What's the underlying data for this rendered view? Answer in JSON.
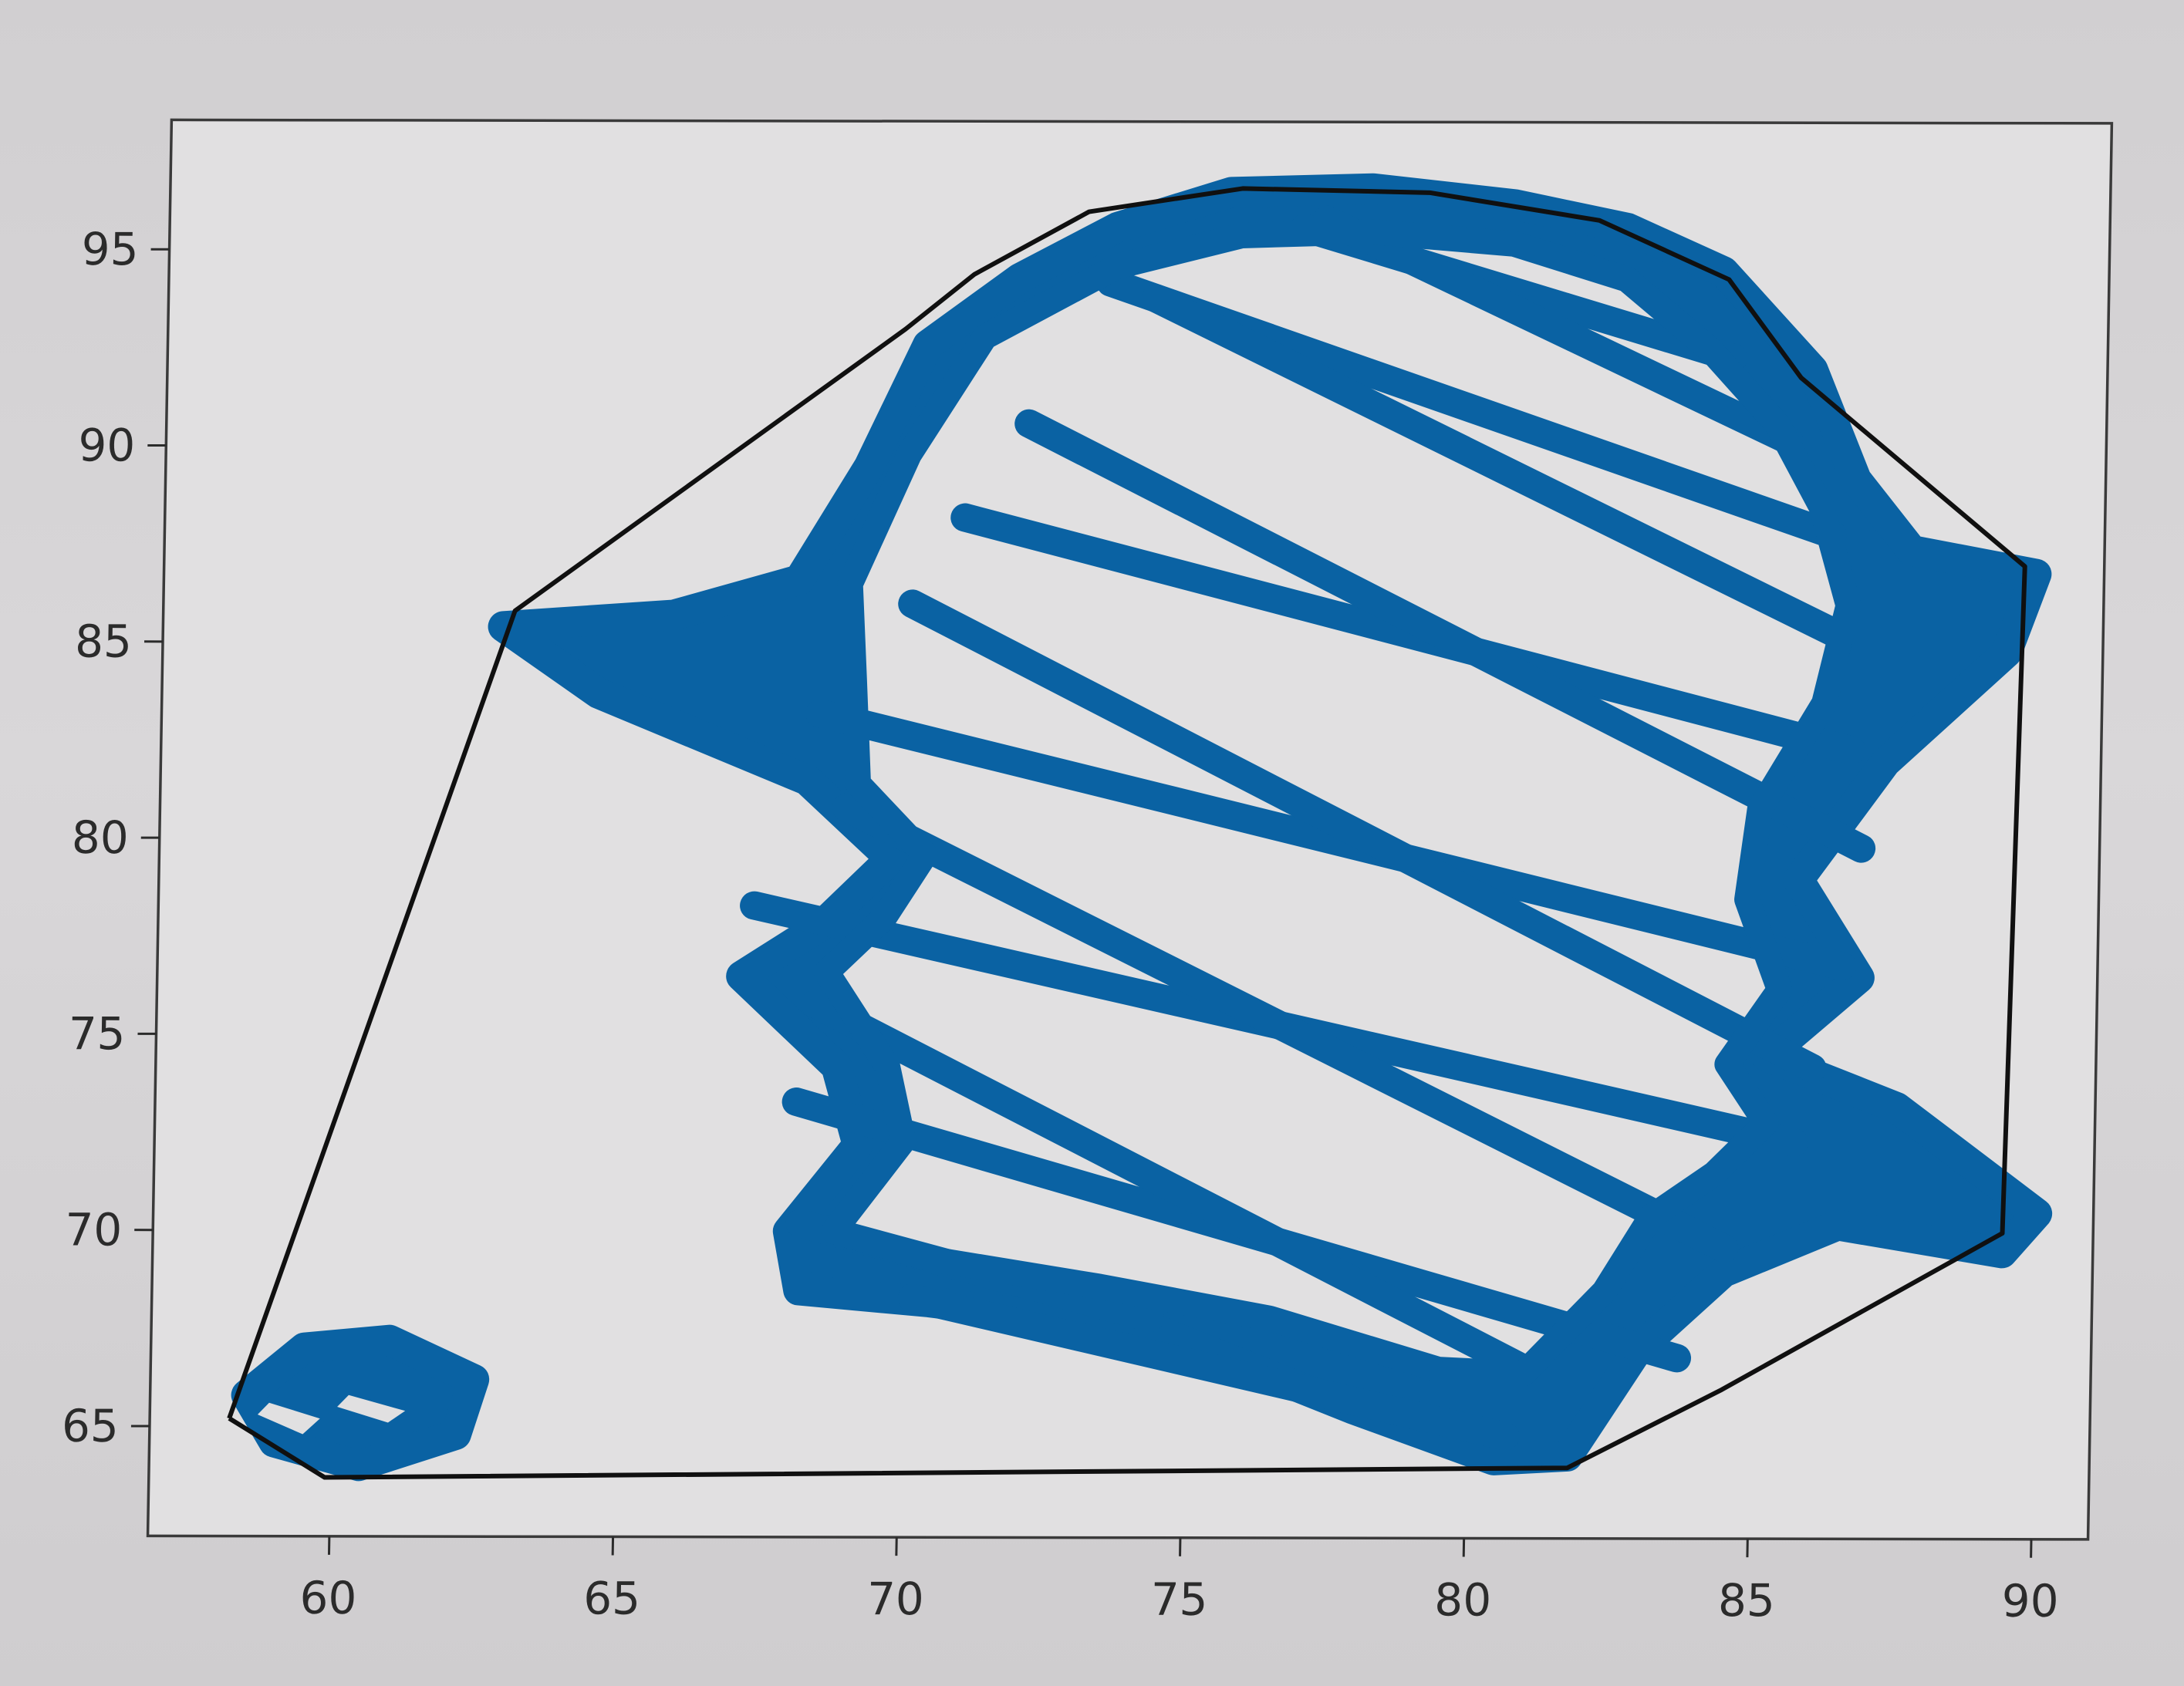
{
  "chart_data": {
    "type": "scatter",
    "title": "",
    "xlabel": "",
    "ylabel": "",
    "xlim": [
      56.8,
      91
    ],
    "ylim": [
      62.2,
      98.3
    ],
    "xticks": [
      60,
      65,
      70,
      75,
      80,
      85,
      90
    ],
    "yticks": [
      65,
      70,
      75,
      80,
      85,
      90,
      95
    ],
    "xtick_labels": [
      "60",
      "65",
      "70",
      "75",
      "80",
      "85",
      "90"
    ],
    "ytick_labels": [
      "65",
      "70",
      "75",
      "80",
      "85",
      "90",
      "95"
    ],
    "grid": false,
    "legend": "none",
    "series": [
      {
        "kind": "points",
        "color": "#0a62a3",
        "paths": [
          [
            [
              58.5,
              65.8
            ],
            [
              59.5,
              67.0
            ],
            [
              61.0,
              67.2
            ],
            [
              62.5,
              66.2
            ],
            [
              62.2,
              64.8
            ],
            [
              60.5,
              64.0
            ],
            [
              59.0,
              64.6
            ],
            [
              58.5,
              65.8
            ]
          ],
          [
            [
              62.8,
              85.4
            ],
            [
              65.8,
              85.7
            ],
            [
              68.0,
              86.6
            ],
            [
              69.2,
              89.5
            ],
            [
              70.2,
              92.6
            ],
            [
              71.8,
              94.3
            ],
            [
              73.5,
              95.6
            ],
            [
              75.5,
              96.5
            ],
            [
              78.0,
              96.6
            ],
            [
              80.5,
              96.2
            ],
            [
              82.5,
              95.6
            ],
            [
              84.2,
              94.5
            ],
            [
              85.8,
              92.0
            ],
            [
              86.6,
              89.2
            ],
            [
              87.6,
              87.4
            ],
            [
              89.8,
              86.8
            ],
            [
              89.3,
              84.8
            ],
            [
              87.2,
              82.0
            ],
            [
              85.7,
              79.0
            ],
            [
              86.8,
              76.5
            ],
            [
              85.2,
              74.5
            ],
            [
              87.5,
              73.2
            ],
            [
              90.0,
              70.5
            ],
            [
              89.4,
              69.5
            ],
            [
              86.5,
              70.2
            ],
            [
              84.5,
              69.0
            ],
            [
              83.0,
              67.0
            ],
            [
              81.8,
              64.3
            ],
            [
              80.5,
              64.2
            ],
            [
              78.0,
              65.5
            ],
            [
              74.5,
              67.5
            ],
            [
              70.5,
              68.2
            ],
            [
              68.2,
              68.5
            ],
            [
              68.0,
              70.0
            ],
            [
              69.2,
              72.2
            ],
            [
              68.8,
              74.2
            ],
            [
              67.1,
              76.5
            ],
            [
              68.5,
              77.8
            ],
            [
              69.7,
              79.5
            ],
            [
              68.2,
              81.5
            ],
            [
              64.5,
              83.7
            ],
            [
              62.8,
              85.4
            ]
          ]
        ],
        "lattice_a": [
          [
            70.2,
            68.3
          ],
          [
            68.1,
            73.3
          ],
          [
            67.3,
            78.3
          ],
          [
            68.4,
            83.2
          ],
          [
            70.9,
            88.2
          ],
          [
            73.4,
            94.2
          ],
          [
            76.8,
            95.6
          ]
        ],
        "lattice_b": [
          [
            80.7,
            64.8
          ],
          [
            83.7,
            66.8
          ],
          [
            85.7,
            72.3
          ],
          [
            86.5,
            76.8
          ],
          [
            86.6,
            82.3
          ],
          [
            86.2,
            87.8
          ],
          [
            84.4,
            92.3
          ]
        ],
        "lattice_width": 0.5
      },
      {
        "kind": "hull",
        "color": "#101010",
        "points": [
          [
            58.2,
            65.2
          ],
          [
            59.9,
            63.7
          ],
          [
            81.8,
            64.0
          ],
          [
            84.5,
            66.0
          ],
          [
            89.4,
            70.0
          ],
          [
            89.6,
            87.0
          ],
          [
            85.6,
            91.8
          ],
          [
            84.3,
            94.3
          ],
          [
            82.0,
            95.8
          ],
          [
            79.0,
            96.5
          ],
          [
            75.7,
            96.6
          ],
          [
            73.0,
            96.0
          ],
          [
            71.0,
            94.4
          ],
          [
            69.8,
            93.0
          ],
          [
            63.0,
            85.8
          ],
          [
            58.2,
            65.2
          ]
        ]
      }
    ]
  }
}
